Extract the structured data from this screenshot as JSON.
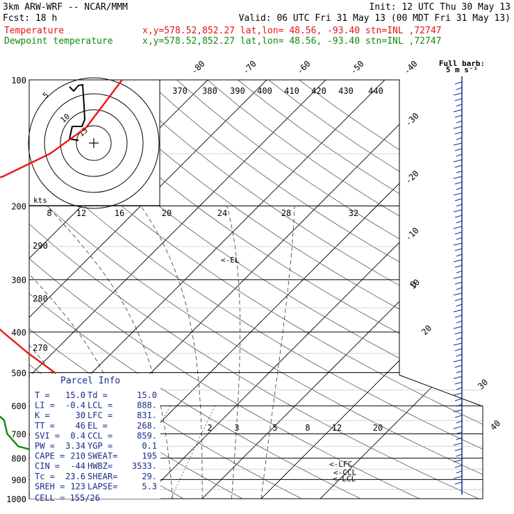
{
  "header": {
    "title": "3km ARW-WRF -- NCAR/MMM",
    "init": "Init: 12 UTC Thu 30 May 13",
    "fcst": "Fcst:   18 h",
    "valid": "Valid: 06 UTC Fri 31 May 13 (00 MDT Fri 31 May 13)",
    "temp_legend": "Temperature",
    "temp_info": "x,y=578.52,852.27   lat,lon= 48.56, -93.40   stn=INL ,72747",
    "dew_legend": "Dewpoint temperature",
    "dew_info": "x,y=578.52,852.27   lat,lon= 48.56, -93.40   stn=INL ,72747",
    "barb_legend_line1": "Full barb:",
    "barb_legend_line2": "5 m s⁻¹"
  },
  "colors": {
    "temperature": "#ee1111",
    "dewpoint": "#118811",
    "wind_barbs": "#1a2a8c",
    "parcel_info": "#1a2a8c"
  },
  "chart_data": {
    "type": "line",
    "title": "",
    "ylabel": "",
    "xlabel": "",
    "pressure_levels": [
      "100",
      "200",
      "300",
      "400",
      "500",
      "600",
      "700",
      "800",
      "900",
      "1000"
    ],
    "series": [
      {
        "name": "Temperature",
        "points": [
          [
            100,
            -54.5
          ],
          [
            130,
            -52.5
          ],
          [
            150,
            -54.2
          ],
          [
            170,
            -58.3
          ],
          [
            180,
            -63.2
          ],
          [
            190,
            -64.5
          ],
          [
            200,
            -64.3
          ],
          [
            220,
            -63.0
          ],
          [
            260,
            -57.0
          ],
          [
            300,
            -50.0
          ],
          [
            350,
            -40.7
          ],
          [
            400,
            -32.0
          ],
          [
            450,
            -24.0
          ],
          [
            500,
            -16.3
          ],
          [
            550,
            -11.5
          ],
          [
            600,
            -5.5
          ],
          [
            650,
            -2.2
          ],
          [
            700,
            2.0
          ],
          [
            750,
            6.0
          ],
          [
            800,
            9.5
          ],
          [
            850,
            13.5
          ],
          [
            890,
            17.0
          ],
          [
            910,
            18.5
          ],
          [
            925,
            14.0
          ],
          [
            930,
            11.0
          ]
        ]
      },
      {
        "name": "Dewpoint temperature",
        "points": [
          [
            100,
            -88.0
          ],
          [
            130,
            -93.3
          ],
          [
            150,
            -91.0
          ],
          [
            170,
            -84.5
          ],
          [
            180,
            -80.0
          ],
          [
            190,
            -79.0
          ],
          [
            200,
            -79.0
          ],
          [
            220,
            -76.5
          ],
          [
            260,
            -69.5
          ],
          [
            300,
            -67.8
          ],
          [
            350,
            -59.5
          ],
          [
            400,
            -42.7
          ],
          [
            450,
            -33.8
          ],
          [
            500,
            -35.0
          ],
          [
            550,
            -32.0
          ],
          [
            600,
            -22.0
          ],
          [
            650,
            -16.8
          ],
          [
            700,
            -14.0
          ],
          [
            750,
            -10.0
          ],
          [
            800,
            -0.3
          ],
          [
            850,
            6.8
          ],
          [
            890,
            10.7
          ],
          [
            910,
            11.0
          ],
          [
            925,
            8.5
          ],
          [
            930,
            7.8
          ]
        ]
      }
    ],
    "temp_labels_top": [
      "-80",
      "-70",
      "-60",
      "-50",
      "-40"
    ],
    "temp_labels_right": [
      "-30",
      "-20",
      "-10",
      "0",
      "10",
      "20",
      "30",
      "40"
    ],
    "theta_labels": [
      "370",
      "380",
      "390",
      "400",
      "410",
      "420",
      "430",
      "440"
    ],
    "theta_left_labels": [
      "290",
      "280",
      "270"
    ],
    "mixing_ratio_labels": [
      "2",
      "3",
      "5",
      "8",
      "12",
      "20"
    ],
    "levels_marked": [
      "<-EL",
      "<-LFC",
      "<-CCL",
      "<-LCL"
    ]
  },
  "hodograph": {
    "units_label": "kts",
    "ring_labels": [
      "5",
      "10",
      "15"
    ],
    "axis_labels": [
      "8",
      "12",
      "16",
      "20",
      "24",
      "28",
      "32"
    ]
  },
  "parcel_info": {
    "title": "Parcel Info",
    "rows": [
      [
        "T  =",
        "15.0",
        "Td =",
        "15.0"
      ],
      [
        "LI =",
        "-0.4",
        "LCL =",
        "888."
      ],
      [
        "K  =",
        "30",
        "LFC =",
        "831."
      ],
      [
        "TT =",
        "46",
        "EL  =",
        "268."
      ],
      [
        "SVI =",
        "0.4",
        "CCL =",
        "859."
      ],
      [
        "PW =",
        "3.34",
        "YGP =",
        "0.1"
      ],
      [
        "CAPE =",
        "210",
        "SWEAT=",
        "195"
      ],
      [
        "CIN =",
        "-44",
        "HWBZ=",
        "3533."
      ],
      [
        "Tc =",
        "23.6",
        "SHEAR=",
        "29."
      ],
      [
        "SREH =",
        "123",
        "LAPSE=",
        "5.3"
      ]
    ],
    "cell": "CELL = 155/26"
  }
}
